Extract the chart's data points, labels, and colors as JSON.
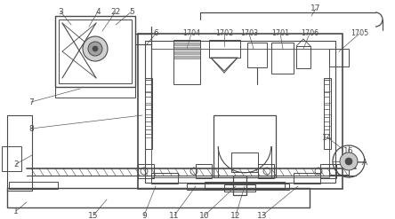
{
  "bg_color": "#ffffff",
  "lc": "#4a4a4a",
  "lc2": "#666666",
  "figsize": [
    4.44,
    2.47
  ],
  "dpi": 100,
  "xlim": [
    0,
    444
  ],
  "ylim": [
    0,
    247
  ]
}
